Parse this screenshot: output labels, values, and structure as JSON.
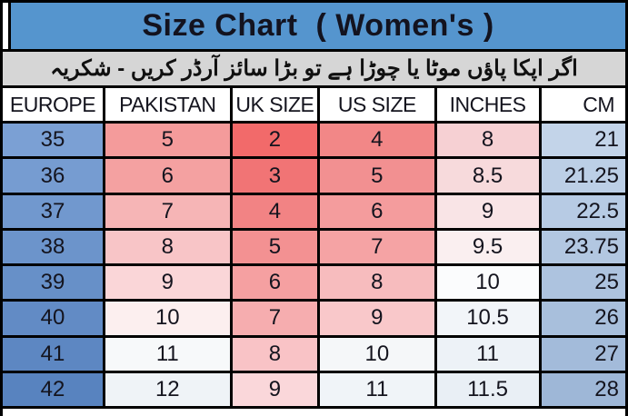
{
  "title": "Size Chart  ( Women's )",
  "note": "اگر اپکا پاؤں موٹا یا چوڑا ہے تو بڑا سائز آرڈر کریں - شکریہ",
  "colors": {
    "title_bg": "#5595CE",
    "note_bg": "#D6D6D6",
    "header_bg": "#FFFFFF",
    "border": "#000000",
    "scale_low_red": "#F26A6A",
    "scale_mid_white": "#FAFBFC",
    "scale_high_blue": "#5883BF"
  },
  "chart_data": {
    "type": "table",
    "title": "Size Chart  ( Women's )",
    "columns": [
      "EUROPE",
      "PAKISTAN",
      "UK SIZE",
      "US SIZE",
      "INCHES",
      "CM"
    ],
    "rows": [
      {
        "values": [
          "35",
          "5",
          "2",
          "4",
          "8",
          "21"
        ],
        "colors": [
          "#7BA0D4",
          "#F49B9B",
          "#F26A6A",
          "#F28787",
          "#F6D0D3",
          "#C3D4E9"
        ]
      },
      {
        "values": [
          "36",
          "6",
          "3",
          "5",
          "8.5",
          "21.25"
        ],
        "colors": [
          "#769CD1",
          "#F4A1A1",
          "#F17475",
          "#F29091",
          "#F7DADC",
          "#BCCFE6"
        ]
      },
      {
        "values": [
          "37",
          "7",
          "4",
          "6",
          "9",
          "22.5"
        ],
        "colors": [
          "#7198CE",
          "#F6B5B6",
          "#F28384",
          "#F49C9D",
          "#F9E4E6",
          "#B7CBE4"
        ]
      },
      {
        "values": [
          "38",
          "8",
          "5",
          "7",
          "9.5",
          "23.75"
        ],
        "colors": [
          "#6C94CB",
          "#F8C5C7",
          "#F39192",
          "#F5A3A4",
          "#FAEFF0",
          "#B2C7E1"
        ]
      },
      {
        "values": [
          "39",
          "9",
          "6",
          "8",
          "10",
          "25"
        ],
        "colors": [
          "#6790C8",
          "#FAD6D8",
          "#F5A0A1",
          "#F7BCBE",
          "#FBFCFD",
          "#ADC3DF"
        ]
      },
      {
        "values": [
          "40",
          "10",
          "7",
          "9",
          "10.5",
          "26"
        ],
        "colors": [
          "#628BC5",
          "#FCEFEF",
          "#F6ADAF",
          "#F9C8CA",
          "#F2F5F9",
          "#A8BFDC"
        ]
      },
      {
        "values": [
          "41",
          "11",
          "8",
          "10",
          "11",
          "27"
        ],
        "colors": [
          "#5D87C2",
          "#F7F9FA",
          "#F9C3C6",
          "#F5F7F9",
          "#EDF2F7",
          "#A3BBDA"
        ]
      },
      {
        "values": [
          "42",
          "12",
          "9",
          "11",
          "11.5",
          "28"
        ],
        "colors": [
          "#5883BF",
          "#EFF3F7",
          "#FAD7DA",
          "#F0F4F8",
          "#E9EFF5",
          "#9EB7D7"
        ]
      }
    ]
  }
}
